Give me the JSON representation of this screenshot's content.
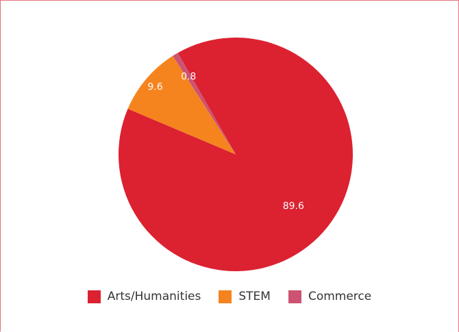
{
  "colors": {
    "border": "#e8707d",
    "label_text": "#ffffff"
  },
  "chart_data": {
    "type": "pie",
    "title": "",
    "categories": [
      "Arts/Humanities",
      "STEM",
      "Commerce"
    ],
    "values": [
      89.6,
      9.6,
      0.8
    ],
    "data_labels": [
      "89.6",
      "9.6",
      "0.8"
    ],
    "colors": [
      "#dc2131",
      "#f5841f",
      "#cc5472"
    ],
    "legend_position": "bottom"
  },
  "legend": {
    "items": [
      {
        "label": "Arts/Humanities",
        "color": "#dc2131"
      },
      {
        "label": "STEM",
        "color": "#f5841f"
      },
      {
        "label": "Commerce",
        "color": "#cc5472"
      }
    ]
  }
}
